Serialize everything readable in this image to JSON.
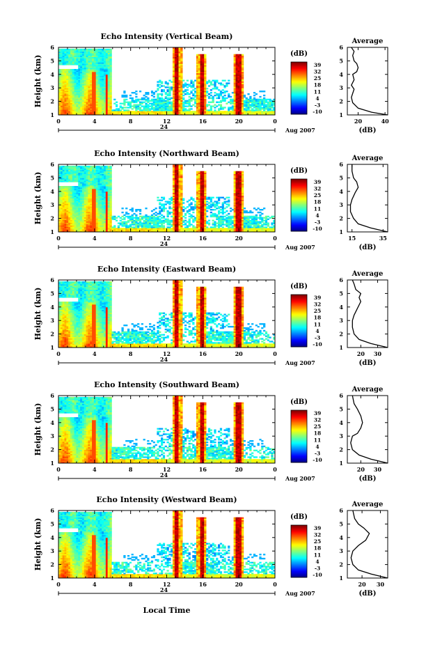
{
  "chart_data": {
    "type": "heatmap",
    "xlabel": "Local Time",
    "date_label": "24",
    "month_label": "Aug 2007",
    "colorbar": {
      "unit": "(dB)",
      "ticks": [
        "39",
        "32",
        "25",
        "18",
        "11",
        "4",
        "-3",
        "-10"
      ],
      "range": [
        -10,
        39
      ]
    },
    "panels": [
      {
        "title": "Echo Intensity (Vertical Beam)",
        "ylabel": "Height (km)",
        "x_ticks": [
          "0",
          "4",
          "8",
          "12",
          "16",
          "20",
          "0"
        ],
        "y_ticks": [
          "1",
          "2",
          "3",
          "4",
          "5",
          "6"
        ],
        "avg": {
          "title": "Average",
          "xlabel": "(dB)",
          "x_ticks": [
            "20",
            "40"
          ],
          "y_ticks": [
            "1",
            "2",
            "3",
            "4",
            "5",
            "6"
          ],
          "xlim": [
            12,
            42
          ],
          "profile": [
            [
              42,
              1.0
            ],
            [
              30,
              1.2
            ],
            [
              20,
              1.5
            ],
            [
              16,
              1.9
            ],
            [
              15,
              2.3
            ],
            [
              16,
              2.6
            ],
            [
              17,
              2.9
            ],
            [
              15,
              3.2
            ],
            [
              17,
              3.6
            ],
            [
              16,
              4.0
            ],
            [
              19,
              4.2
            ],
            [
              20,
              4.5
            ],
            [
              19,
              4.8
            ],
            [
              17,
              5.0
            ],
            [
              16,
              5.4
            ],
            [
              17,
              5.7
            ],
            [
              15,
              6.0
            ]
          ]
        }
      },
      {
        "title": "Echo Intensity (Northward Beam)",
        "ylabel": "Height (km)",
        "x_ticks": [
          "0",
          "4",
          "8",
          "12",
          "16",
          "20",
          "0"
        ],
        "y_ticks": [
          "1",
          "2",
          "3",
          "4",
          "5",
          "6"
        ],
        "avg": {
          "title": "Average",
          "xlabel": "(dB)",
          "x_ticks": [
            "15",
            "35"
          ],
          "y_ticks": [
            "1",
            "2",
            "3",
            "4",
            "5",
            "6"
          ],
          "xlim": [
            12,
            38
          ],
          "profile": [
            [
              38,
              1.0
            ],
            [
              27,
              1.3
            ],
            [
              19,
              1.6
            ],
            [
              16,
              2.0
            ],
            [
              14,
              2.5
            ],
            [
              14,
              3.0
            ],
            [
              15,
              3.4
            ],
            [
              17,
              3.9
            ],
            [
              19,
              4.3
            ],
            [
              18,
              4.7
            ],
            [
              16,
              5.0
            ],
            [
              15,
              5.5
            ],
            [
              15,
              6.0
            ]
          ]
        }
      },
      {
        "title": "Echo Intensity (Eastward Beam)",
        "ylabel": "Height (km)",
        "x_ticks": [
          "0",
          "4",
          "8",
          "12",
          "16",
          "20",
          "0"
        ],
        "y_ticks": [
          "1",
          "2",
          "3",
          "4",
          "5",
          "6"
        ],
        "avg": {
          "title": "Average",
          "xlabel": "(dB)",
          "x_ticks": [
            "20",
            "30"
          ],
          "y_ticks": [
            "1",
            "2",
            "3",
            "4",
            "5",
            "6"
          ],
          "xlim": [
            12,
            36
          ],
          "profile": [
            [
              36,
              1.0
            ],
            [
              26,
              1.3
            ],
            [
              19,
              1.6
            ],
            [
              16,
              2.0
            ],
            [
              15,
              2.5
            ],
            [
              15,
              3.0
            ],
            [
              16,
              3.4
            ],
            [
              18,
              3.9
            ],
            [
              20,
              4.4
            ],
            [
              19,
              4.7
            ],
            [
              20,
              5.0
            ],
            [
              17,
              5.3
            ],
            [
              16,
              5.7
            ],
            [
              15,
              6.0
            ]
          ]
        }
      },
      {
        "title": "Echo Intensity (Southward Beam)",
        "ylabel": "Height (km)",
        "x_ticks": [
          "0",
          "4",
          "8",
          "12",
          "16",
          "20",
          "0"
        ],
        "y_ticks": [
          "1",
          "2",
          "3",
          "4",
          "5",
          "6"
        ],
        "avg": {
          "title": "Average",
          "xlabel": "(dB)",
          "x_ticks": [
            "20",
            "30"
          ],
          "y_ticks": [
            "1",
            "2",
            "3",
            "4",
            "5",
            "6"
          ],
          "xlim": [
            12,
            36
          ],
          "profile": [
            [
              36,
              1.0
            ],
            [
              26,
              1.3
            ],
            [
              19,
              1.6
            ],
            [
              15,
              2.0
            ],
            [
              14,
              2.5
            ],
            [
              15,
              3.0
            ],
            [
              18,
              3.2
            ],
            [
              20,
              3.6
            ],
            [
              21,
              4.0
            ],
            [
              20,
              4.5
            ],
            [
              18,
              5.0
            ],
            [
              16,
              5.4
            ],
            [
              15,
              6.0
            ]
          ]
        }
      },
      {
        "title": "Echo Intensity (Westward Beam)",
        "ylabel": "Height (km)",
        "x_ticks": [
          "0",
          "4",
          "8",
          "12",
          "16",
          "20",
          "0"
        ],
        "y_ticks": [
          "1",
          "2",
          "3",
          "4",
          "5",
          "6"
        ],
        "avg": {
          "title": "Average",
          "xlabel": "(dB)",
          "x_ticks": [
            "20",
            "30"
          ],
          "y_ticks": [
            "1",
            "2",
            "3",
            "4",
            "5",
            "6"
          ],
          "xlim": [
            12,
            34
          ],
          "profile": [
            [
              34,
              1.0
            ],
            [
              25,
              1.3
            ],
            [
              18,
              1.6
            ],
            [
              15,
              2.0
            ],
            [
              14,
              2.5
            ],
            [
              15,
              3.0
            ],
            [
              18,
              3.4
            ],
            [
              22,
              3.8
            ],
            [
              24,
              4.3
            ],
            [
              21,
              4.7
            ],
            [
              18,
              5.0
            ],
            [
              16,
              5.4
            ],
            [
              15,
              6.0
            ]
          ]
        }
      }
    ]
  }
}
